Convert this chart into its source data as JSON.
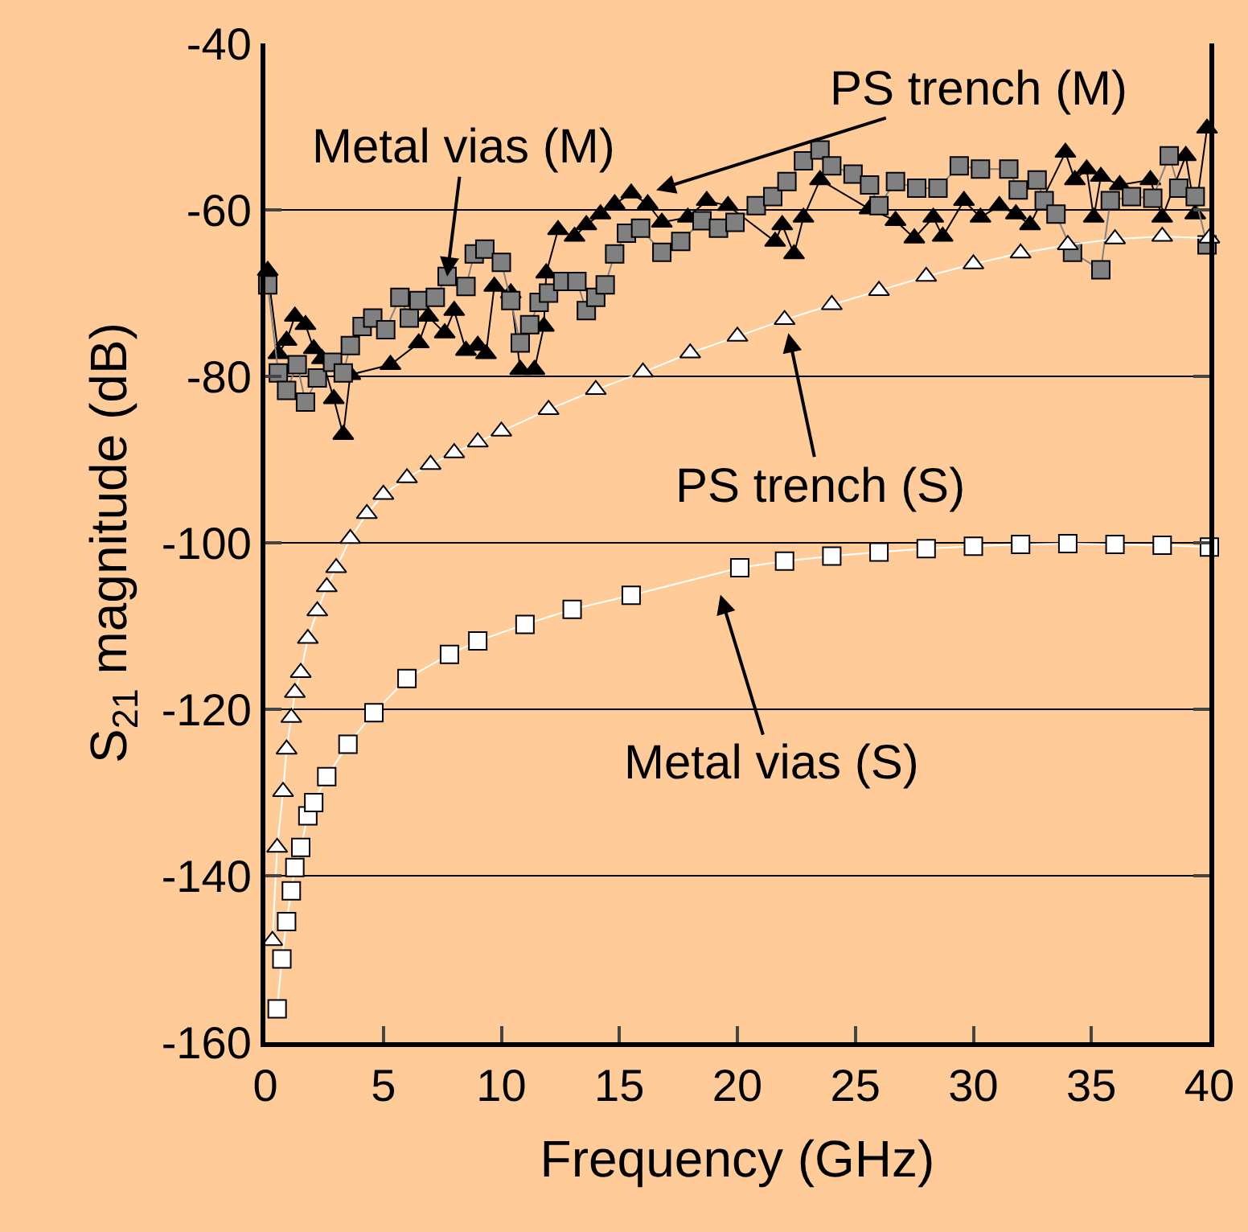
{
  "chart_data": {
    "type": "line",
    "xlabel": "Frequency (GHz)",
    "ylabel": "S$_{21}$ magnitude (dB)",
    "xlim": [
      0,
      40
    ],
    "xticks": [
      0,
      5,
      10,
      15,
      20,
      25,
      30,
      35,
      40
    ],
    "ylim": [
      -160,
      -40
    ],
    "yticks": [
      -160,
      -140,
      -120,
      -100,
      -80,
      -60,
      -40
    ],
    "grid": "y",
    "line_style": "solid",
    "series": [
      {
        "color": "#000000",
        "marker": "triangle",
        "x": [
          0.1,
          0.55,
          0.9,
          1.25,
          1.7,
          2.05,
          2.4,
          2.9,
          3.3,
          3.6,
          5.3,
          6.5,
          6.9,
          7.6,
          8,
          8.5,
          9,
          9.35,
          9.7,
          10.4,
          10.8,
          11.4,
          11.8,
          11.9,
          12.4,
          13.1,
          13.6,
          14.2,
          14.8,
          15.5,
          16.2,
          16.8,
          17.9,
          18.7,
          19.6,
          21.6,
          21.9,
          22.4,
          22.8,
          23.5,
          25.6,
          26.7,
          27.5,
          28.3,
          28.7,
          29.6,
          30.3,
          31.1,
          31.8,
          32.4,
          33.9,
          34.3,
          34.8,
          35.1,
          35.4,
          36.2,
          37.5,
          38,
          39,
          39.4,
          39.9
        ],
        "values": [
          -67.3,
          -77.3,
          -75.7,
          -72.8,
          -73.8,
          -76.7,
          -77.9,
          -82.7,
          -87,
          -79.8,
          -78.6,
          -76,
          -72.8,
          -74.8,
          -72.1,
          -76.9,
          -76.3,
          -77.3,
          -69.2,
          -70,
          -79.2,
          -79.2,
          -74,
          -67.6,
          -62.4,
          -63.2,
          -61.8,
          -60.5,
          -59.3,
          -58,
          -59.3,
          -61.5,
          -60.9,
          -58.9,
          -59.5,
          -63.8,
          -61.8,
          -65.3,
          -60.9,
          -56.4,
          -59.9,
          -61.3,
          -63.4,
          -60.9,
          -63.2,
          -58.9,
          -60.9,
          -59.5,
          -60.5,
          -61.8,
          -53.1,
          -56.4,
          -55.1,
          -60.9,
          -56,
          -57,
          -56.4,
          -60.9,
          -53.5,
          -60.5,
          -50.2
        ]
      },
      {
        "color": "#808080",
        "marker": "square",
        "x": [
          0.1,
          0.55,
          0.9,
          1.35,
          1.7,
          2.2,
          2.85,
          3.3,
          3.6,
          4.1,
          4.55,
          5.1,
          5.7,
          6.1,
          6.5,
          7.2,
          7.7,
          8.5,
          8.85,
          9.3,
          10,
          10.4,
          10.8,
          11.2,
          11.6,
          12,
          12.6,
          13.2,
          13.6,
          14,
          14.4,
          14.8,
          15.3,
          15.9,
          16.8,
          17.6,
          18.5,
          19.2,
          19.9,
          20.8,
          21.5,
          22.1,
          22.8,
          23.5,
          24,
          24.9,
          25.6,
          26,
          26.7,
          27.6,
          28.5,
          29.4,
          30.3,
          31.5,
          31.9,
          32.7,
          33,
          33.5,
          34.2,
          35.4,
          35.8,
          36.7,
          37.6,
          38.3,
          38.7,
          39.4,
          39.9
        ],
        "values": [
          -69,
          -79.6,
          -81.7,
          -78.6,
          -83.1,
          -80.2,
          -78.3,
          -79.6,
          -76.3,
          -74,
          -73,
          -74.4,
          -70.5,
          -73,
          -70.9,
          -70.5,
          -68,
          -69.2,
          -65.3,
          -64.7,
          -66.3,
          -70.9,
          -76,
          -73.8,
          -71.1,
          -70,
          -68.6,
          -68.6,
          -72.1,
          -70.5,
          -69,
          -65.3,
          -62.8,
          -62.2,
          -65.1,
          -63.8,
          -61.3,
          -62.2,
          -61.5,
          -59.5,
          -58.4,
          -56.6,
          -54.1,
          -52.8,
          -54.7,
          -55.7,
          -57,
          -59.5,
          -56.6,
          -57.4,
          -57.4,
          -54.7,
          -55.1,
          -55.1,
          -57.6,
          -56.4,
          -58.9,
          -60.5,
          -65.1,
          -67.2,
          -58.9,
          -58.4,
          -58.6,
          -53.5,
          -57.4,
          -58.4,
          -64.2
        ]
      },
      {
        "color": "#ffffff",
        "marker": "triangle",
        "x": [
          0.3,
          0.5,
          0.75,
          0.9,
          1.1,
          1.25,
          1.5,
          1.8,
          2.2,
          2.6,
          3,
          3.6,
          4.3,
          5,
          6,
          7,
          8,
          9,
          10,
          12,
          14,
          16,
          18,
          20,
          22,
          24,
          26,
          28,
          30,
          32,
          34,
          36,
          38,
          40
        ],
        "values": [
          -147.8,
          -136.6,
          -129.9,
          -124.8,
          -121,
          -118,
          -115.6,
          -111.5,
          -108.2,
          -105.3,
          -103,
          -99.5,
          -96.5,
          -94.2,
          -92.2,
          -90.6,
          -89.2,
          -87.9,
          -86.6,
          -84,
          -81.6,
          -79.5,
          -77.2,
          -75.2,
          -73.2,
          -71.4,
          -69.7,
          -68,
          -66.5,
          -65.2,
          -64.2,
          -63.5,
          -63.2,
          -63.4
        ]
      },
      {
        "color": "#ffffff",
        "marker": "square",
        "x": [
          0.5,
          0.7,
          0.9,
          1.1,
          1.25,
          1.5,
          1.8,
          2.05,
          2.6,
          3.5,
          4.6,
          6,
          7.8,
          9,
          11,
          13,
          15.5,
          20.1,
          22,
          24,
          26,
          28,
          30,
          32,
          34,
          36,
          38,
          40
        ],
        "values": [
          -156,
          -150,
          -145.5,
          -141.8,
          -139,
          -136.6,
          -132.8,
          -131.2,
          -128.1,
          -124.2,
          -120.4,
          -116.3,
          -113.4,
          -111.8,
          -109.8,
          -108,
          -106.3,
          -103,
          -102.2,
          -101.6,
          -101.1,
          -100.7,
          -100.4,
          -100.2,
          -100.1,
          -100.2,
          -100.3,
          -100.5
        ]
      }
    ],
    "annotations": [
      {
        "text": "Metal vias (M)",
        "x": 7.7,
        "y": -68
      },
      "PS trench (M)",
      "PS trench (S)",
      "Metal vias (S)"
    ]
  }
}
